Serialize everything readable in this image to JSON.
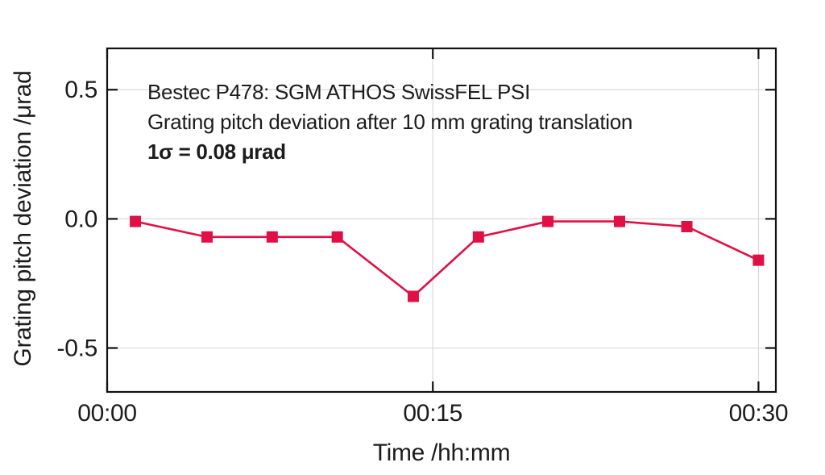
{
  "page": {
    "background": "#ffffff"
  },
  "chart_data": {
    "type": "line",
    "title": "Bestec P478: SGM ATHOS SwissFEL PSI",
    "subtitle": "Grating pitch deviation after 10 mm grating translation",
    "sigma_note": "1σ = 0.08 μrad",
    "xlabel": "Time /hh:mm",
    "ylabel": "Grating pitch deviation /μrad",
    "xlim_minutes": [
      0,
      30.8
    ],
    "ylim": [
      -0.67,
      0.66
    ],
    "grid": true,
    "legend": "none",
    "x_ticks": [
      {
        "minutes": 0,
        "label": "00:00"
      },
      {
        "minutes": 15,
        "label": "00:15"
      },
      {
        "minutes": 30,
        "label": "00:30"
      }
    ],
    "y_ticks": [
      {
        "value": 0.5,
        "label": "0.5"
      },
      {
        "value": 0.0,
        "label": "0.0"
      },
      {
        "value": -0.5,
        "label": "-0.5"
      }
    ],
    "series": [
      {
        "name": "grating pitch deviation",
        "style": "line+markers",
        "marker": "filled-square",
        "color": "#e01045",
        "points": [
          {
            "t_minutes": 1.3,
            "deviation_urad": -0.01
          },
          {
            "t_minutes": 4.6,
            "deviation_urad": -0.07
          },
          {
            "t_minutes": 7.6,
            "deviation_urad": -0.07
          },
          {
            "t_minutes": 10.6,
            "deviation_urad": -0.07
          },
          {
            "t_minutes": 14.1,
            "deviation_urad": -0.3
          },
          {
            "t_minutes": 17.1,
            "deviation_urad": -0.07
          },
          {
            "t_minutes": 20.3,
            "deviation_urad": -0.01
          },
          {
            "t_minutes": 23.6,
            "deviation_urad": -0.01
          },
          {
            "t_minutes": 26.7,
            "deviation_urad": -0.03
          },
          {
            "t_minutes": 30.0,
            "deviation_urad": -0.16
          }
        ]
      }
    ],
    "colors": {
      "axis": "#111111",
      "grid": "#d9d9d9",
      "text": "#1c1c1c",
      "series": "#e01045"
    }
  }
}
